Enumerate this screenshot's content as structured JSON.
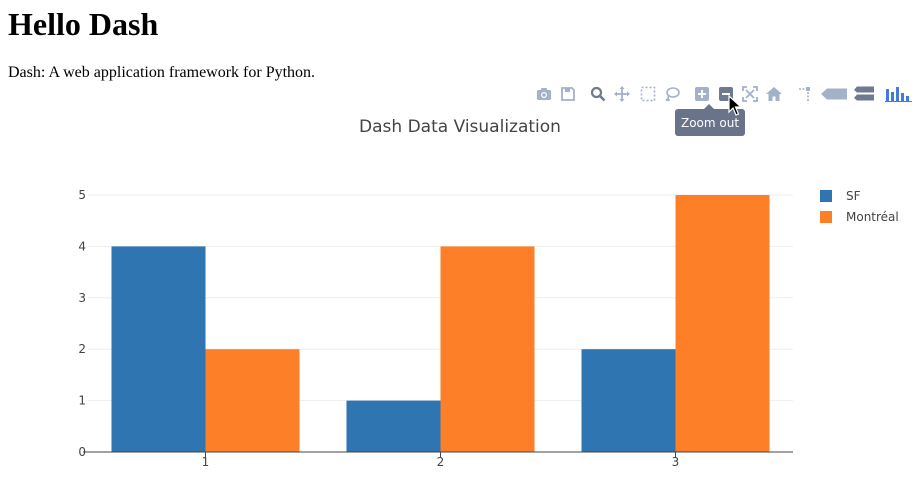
{
  "header": {
    "title": "Hello Dash",
    "subtitle": "Dash: A web application framework for Python."
  },
  "modebar": {
    "buttons": [
      {
        "name": "camera-icon"
      },
      {
        "name": "save-icon"
      },
      {
        "name": "zoom-icon"
      },
      {
        "name": "pan-icon"
      },
      {
        "name": "box-select-icon"
      },
      {
        "name": "lasso-select-icon"
      },
      {
        "name": "zoom-in-icon"
      },
      {
        "name": "zoom-out-icon"
      },
      {
        "name": "autoscale-icon"
      },
      {
        "name": "home-icon"
      },
      {
        "name": "spike-lines-icon"
      },
      {
        "name": "hover-closest-icon"
      },
      {
        "name": "hover-compare-icon"
      },
      {
        "name": "plotly-logo-icon"
      }
    ],
    "tooltip": "Zoom out",
    "icon_color": "#a3b1c9",
    "active_color": "#6f7a91",
    "logo_color": "#447adb"
  },
  "chart_data": {
    "type": "bar",
    "title": "Dash Data Visualization",
    "categories": [
      "1",
      "2",
      "3"
    ],
    "series": [
      {
        "name": "SF",
        "values": [
          4,
          1,
          2
        ],
        "color": "#2e75b2"
      },
      {
        "name": "Montréal",
        "values": [
          2,
          4,
          5
        ],
        "color": "#fd7f28"
      }
    ],
    "ylim": [
      0,
      5
    ],
    "yticks": [
      0,
      1,
      2,
      3,
      4,
      5
    ],
    "grid": true,
    "legend": "top-right"
  }
}
